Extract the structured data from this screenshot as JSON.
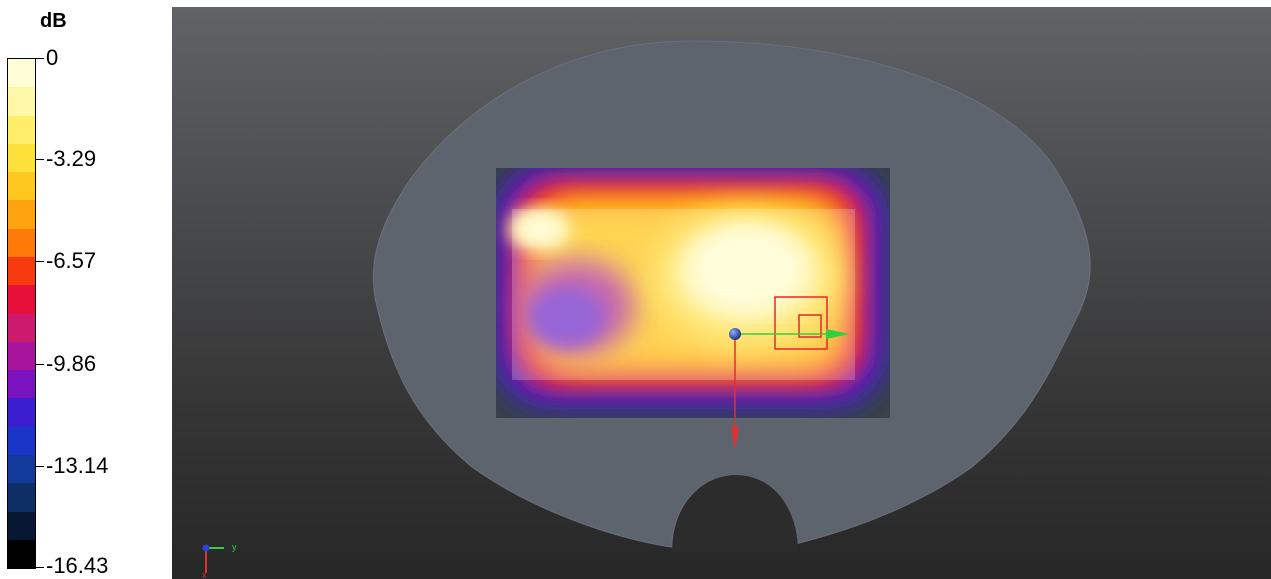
{
  "legend": {
    "unit": "dB",
    "ticks": [
      "0",
      "-3.29",
      "-6.57",
      "-9.86",
      "-13.14",
      "-16.43"
    ],
    "colors": [
      "#fffdd6",
      "#fff7a8",
      "#ffee6a",
      "#fde03a",
      "#ffc820",
      "#ffa30f",
      "#ff7a08",
      "#f83a10",
      "#e6103a",
      "#cc1a6e",
      "#a8149c",
      "#7a12c0",
      "#3a1ed0",
      "#1a36c8",
      "#123a9a",
      "#0e2e66",
      "#081833",
      "#000000"
    ]
  },
  "viewport": {
    "phantom_color": "#5d646d",
    "scan_area_color": "#3b4048",
    "axis_triad": {
      "y_label": "y",
      "x_label": "x"
    }
  }
}
